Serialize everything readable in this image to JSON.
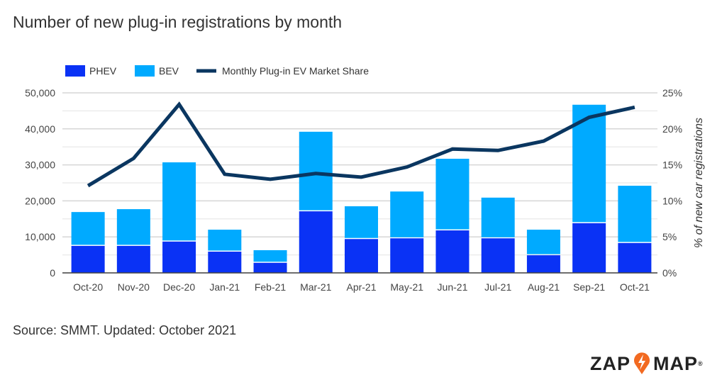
{
  "title": "Number of new plug-in registrations by month",
  "source": "Source: SMMT. Updated: October 2021",
  "logo": {
    "left": "ZAP",
    "right": "MAP",
    "mark": "®"
  },
  "colors": {
    "phev": "#0a32f5",
    "bev": "#00aaff",
    "line": "#0a3660"
  },
  "chart_data": {
    "type": "bar",
    "stacked": true,
    "categories": [
      "Oct-20",
      "Nov-20",
      "Dec-20",
      "Jan-21",
      "Feb-21",
      "Mar-21",
      "Apr-21",
      "May-21",
      "Jun-21",
      "Jul-21",
      "Aug-21",
      "Sep-21",
      "Oct-21"
    ],
    "series": [
      {
        "name": "PHEV",
        "type": "bar",
        "axis": "left",
        "values": [
          7500,
          7500,
          8700,
          5900,
          2800,
          17100,
          9400,
          9600,
          11800,
          9600,
          4900,
          13800,
          8300
        ]
      },
      {
        "name": "BEV",
        "type": "bar",
        "axis": "left",
        "values": [
          9400,
          10200,
          22000,
          6100,
          3500,
          22100,
          9100,
          13000,
          19900,
          11300,
          7100,
          32900,
          15900
        ]
      },
      {
        "name": "Monthly Plug-in EV Market Share",
        "type": "line",
        "axis": "right",
        "values": [
          12.1,
          15.9,
          23.4,
          13.7,
          13.0,
          13.8,
          13.3,
          14.7,
          17.2,
          17.0,
          18.3,
          21.6,
          23.0
        ]
      }
    ],
    "ylim": [
      0,
      50000
    ],
    "y_ticks": [
      "0",
      "10,000",
      "20,000",
      "30,000",
      "40,000",
      "50,000"
    ],
    "y2lim": [
      0,
      25
    ],
    "y2_ticks": [
      "0%",
      "5%",
      "10%",
      "15%",
      "20%",
      "25%"
    ],
    "y2label": "% of new car registrations",
    "xlabel": "",
    "ylabel": "",
    "grid": true,
    "legend": "top-left"
  }
}
